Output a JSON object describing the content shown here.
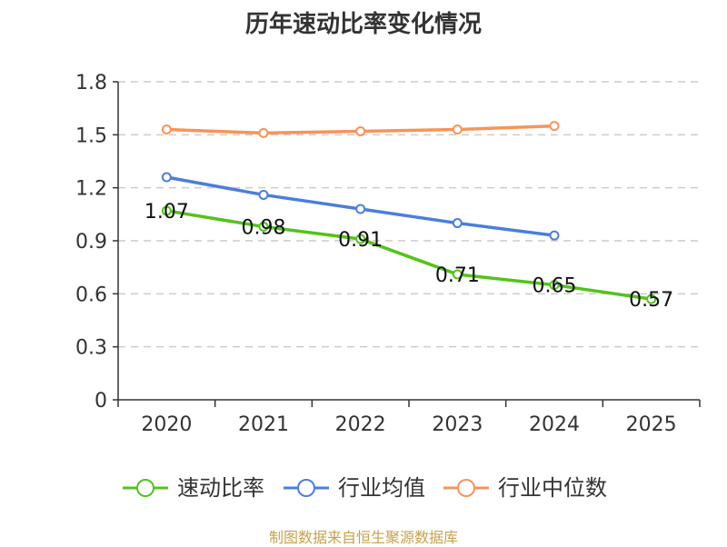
{
  "chart_data": {
    "type": "line",
    "title": "历年速动比率变化情况",
    "categories": [
      "2020",
      "2021",
      "2022",
      "2023",
      "2024",
      "2025"
    ],
    "ylim": [
      0,
      1.8
    ],
    "yticks": [
      "0",
      "0.3",
      "0.6",
      "0.9",
      "1.2",
      "1.5",
      "1.8"
    ],
    "grid": true,
    "legend_position": "bottom",
    "series": [
      {
        "name": "速动比率",
        "color": "#52c41a",
        "values": [
          1.07,
          0.98,
          0.91,
          0.71,
          0.65,
          0.57
        ],
        "labels": [
          "1.07",
          "0.98",
          "0.91",
          "0.71",
          "0.65",
          "0.57"
        ]
      },
      {
        "name": "行业均值",
        "color": "#4a7fdb",
        "values": [
          1.26,
          1.16,
          1.08,
          1.0,
          0.93,
          null
        ]
      },
      {
        "name": "行业中位数",
        "color": "#f79459",
        "values": [
          1.53,
          1.51,
          1.52,
          1.53,
          1.55,
          null
        ]
      }
    ]
  },
  "source": "制图数据来自恒生聚源数据库"
}
